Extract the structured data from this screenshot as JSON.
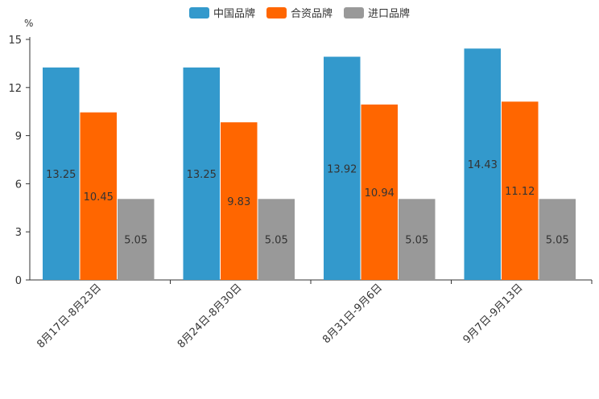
{
  "chart_data": {
    "type": "bar",
    "unit": "%",
    "categories": [
      "8月17日-8月23日",
      "8月24日-8月30日",
      "8月31日-9月6日",
      "9月7日-9月13日"
    ],
    "series": [
      {
        "name": "中国品牌",
        "color": "#3399cc",
        "values": [
          13.25,
          13.25,
          13.92,
          14.43
        ]
      },
      {
        "name": "合资品牌",
        "color": "#ff6600",
        "values": [
          10.45,
          9.83,
          10.94,
          11.12
        ]
      },
      {
        "name": "进口品牌",
        "color": "#999999",
        "values": [
          5.05,
          5.05,
          5.05,
          5.05
        ]
      }
    ],
    "ylim": [
      0,
      15
    ],
    "yticks": [
      "0",
      "3",
      "6",
      "9",
      "12",
      "15"
    ],
    "legend_position": "top-center"
  }
}
